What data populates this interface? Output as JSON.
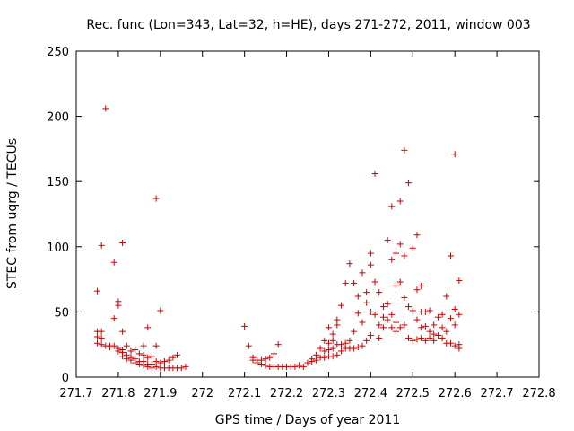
{
  "chart_data": {
    "type": "scatter",
    "title": "Rec. func (Lon=343, Lat=32, h=HE), days 271-272, 2011, window 003",
    "xlabel": "GPS time / Days of year 2011",
    "ylabel": "STEC from uqrg / TECUs",
    "xlim": [
      271.7,
      272.8
    ],
    "ylim": [
      0,
      250
    ],
    "xticks": [
      "271.7",
      "271.8",
      "271.9",
      "272",
      "272.1",
      "272.2",
      "272.3",
      "272.4",
      "272.5",
      "272.6",
      "272.7",
      "272.8"
    ],
    "yticks": [
      "0",
      "50",
      "100",
      "150",
      "200",
      "250"
    ],
    "grid": false,
    "marker_color": "#cc0000",
    "points": [
      [
        271.75,
        66
      ],
      [
        271.75,
        35
      ],
      [
        271.75,
        31
      ],
      [
        271.75,
        26
      ],
      [
        271.76,
        101
      ],
      [
        271.76,
        35
      ],
      [
        271.76,
        30
      ],
      [
        271.76,
        25
      ],
      [
        271.77,
        206
      ],
      [
        271.77,
        24
      ],
      [
        271.78,
        24
      ],
      [
        271.78,
        23
      ],
      [
        271.79,
        88
      ],
      [
        271.79,
        45
      ],
      [
        271.79,
        24
      ],
      [
        271.8,
        58
      ],
      [
        271.8,
        55
      ],
      [
        271.8,
        22
      ],
      [
        271.8,
        20
      ],
      [
        271.81,
        103
      ],
      [
        271.81,
        35
      ],
      [
        271.81,
        21
      ],
      [
        271.81,
        19
      ],
      [
        271.81,
        16
      ],
      [
        271.82,
        24
      ],
      [
        271.82,
        17
      ],
      [
        271.82,
        14
      ],
      [
        271.83,
        20
      ],
      [
        271.83,
        15
      ],
      [
        271.83,
        13
      ],
      [
        271.84,
        21
      ],
      [
        271.84,
        14
      ],
      [
        271.84,
        11
      ],
      [
        271.85,
        18
      ],
      [
        271.85,
        12
      ],
      [
        271.85,
        10
      ],
      [
        271.86,
        24
      ],
      [
        271.86,
        17
      ],
      [
        271.86,
        12
      ],
      [
        271.86,
        9
      ],
      [
        271.87,
        38
      ],
      [
        271.87,
        15
      ],
      [
        271.87,
        10
      ],
      [
        271.87,
        8
      ],
      [
        271.88,
        16
      ],
      [
        271.88,
        10
      ],
      [
        271.88,
        7
      ],
      [
        271.89,
        137
      ],
      [
        271.89,
        24
      ],
      [
        271.89,
        12
      ],
      [
        271.89,
        8
      ],
      [
        271.9,
        51
      ],
      [
        271.9,
        11
      ],
      [
        271.9,
        7
      ],
      [
        271.91,
        12
      ],
      [
        271.91,
        7
      ],
      [
        271.92,
        13
      ],
      [
        271.92,
        7
      ],
      [
        271.93,
        15
      ],
      [
        271.93,
        7
      ],
      [
        271.94,
        17
      ],
      [
        271.94,
        7
      ],
      [
        271.95,
        7
      ],
      [
        271.96,
        8
      ],
      [
        272.1,
        39
      ],
      [
        272.11,
        24
      ],
      [
        272.12,
        15
      ],
      [
        272.12,
        13
      ],
      [
        272.13,
        13
      ],
      [
        272.13,
        11
      ],
      [
        272.14,
        13
      ],
      [
        272.14,
        10
      ],
      [
        272.15,
        14
      ],
      [
        272.15,
        9
      ],
      [
        272.16,
        15
      ],
      [
        272.16,
        8
      ],
      [
        272.17,
        18
      ],
      [
        272.17,
        8
      ],
      [
        272.18,
        25
      ],
      [
        272.18,
        8
      ],
      [
        272.19,
        8
      ],
      [
        272.2,
        8
      ],
      [
        272.21,
        8
      ],
      [
        272.22,
        8
      ],
      [
        272.23,
        9
      ],
      [
        272.24,
        8
      ],
      [
        272.25,
        11
      ],
      [
        272.26,
        14
      ],
      [
        272.26,
        12
      ],
      [
        272.27,
        17
      ],
      [
        272.27,
        13
      ],
      [
        272.28,
        22
      ],
      [
        272.28,
        15
      ],
      [
        272.29,
        28
      ],
      [
        272.29,
        20
      ],
      [
        272.29,
        15
      ],
      [
        272.3,
        38
      ],
      [
        272.3,
        26
      ],
      [
        272.3,
        21
      ],
      [
        272.3,
        16
      ],
      [
        272.31,
        33
      ],
      [
        272.31,
        28
      ],
      [
        272.31,
        22
      ],
      [
        272.31,
        16
      ],
      [
        272.32,
        44
      ],
      [
        272.32,
        40
      ],
      [
        272.32,
        25
      ],
      [
        272.32,
        17
      ],
      [
        272.33,
        55
      ],
      [
        272.33,
        25
      ],
      [
        272.33,
        20
      ],
      [
        272.34,
        72
      ],
      [
        272.34,
        26
      ],
      [
        272.34,
        22
      ],
      [
        272.35,
        87
      ],
      [
        272.35,
        28
      ],
      [
        272.35,
        22
      ],
      [
        272.36,
        72
      ],
      [
        272.36,
        35
      ],
      [
        272.36,
        22
      ],
      [
        272.37,
        62
      ],
      [
        272.37,
        49
      ],
      [
        272.37,
        23
      ],
      [
        272.38,
        80
      ],
      [
        272.38,
        42
      ],
      [
        272.38,
        24
      ],
      [
        272.39,
        65
      ],
      [
        272.39,
        57
      ],
      [
        272.39,
        28
      ],
      [
        272.4,
        95
      ],
      [
        272.4,
        86
      ],
      [
        272.4,
        50
      ],
      [
        272.4,
        32
      ],
      [
        272.41,
        156
      ],
      [
        272.41,
        73
      ],
      [
        272.41,
        48
      ],
      [
        272.42,
        65
      ],
      [
        272.42,
        40
      ],
      [
        272.42,
        30
      ],
      [
        272.43,
        54
      ],
      [
        272.43,
        46
      ],
      [
        272.43,
        38
      ],
      [
        272.44,
        105
      ],
      [
        272.44,
        56
      ],
      [
        272.44,
        44
      ],
      [
        272.45,
        131
      ],
      [
        272.45,
        90
      ],
      [
        272.45,
        48
      ],
      [
        272.45,
        38
      ],
      [
        272.46,
        95
      ],
      [
        272.46,
        70
      ],
      [
        272.46,
        42
      ],
      [
        272.46,
        35
      ],
      [
        272.47,
        135
      ],
      [
        272.47,
        102
      ],
      [
        272.47,
        73
      ],
      [
        272.47,
        38
      ],
      [
        272.48,
        174
      ],
      [
        272.48,
        93
      ],
      [
        272.48,
        61
      ],
      [
        272.48,
        40
      ],
      [
        272.49,
        149
      ],
      [
        272.49,
        54
      ],
      [
        272.49,
        30
      ],
      [
        272.5,
        99
      ],
      [
        272.5,
        51
      ],
      [
        272.5,
        28
      ],
      [
        272.51,
        109
      ],
      [
        272.51,
        67
      ],
      [
        272.51,
        44
      ],
      [
        272.51,
        29
      ],
      [
        272.52,
        70
      ],
      [
        272.52,
        50
      ],
      [
        272.52,
        38
      ],
      [
        272.52,
        30
      ],
      [
        272.53,
        50
      ],
      [
        272.53,
        39
      ],
      [
        272.53,
        28
      ],
      [
        272.54,
        51
      ],
      [
        272.54,
        35
      ],
      [
        272.54,
        30
      ],
      [
        272.55,
        40
      ],
      [
        272.55,
        33
      ],
      [
        272.55,
        28
      ],
      [
        272.56,
        46
      ],
      [
        272.56,
        32
      ],
      [
        272.57,
        48
      ],
      [
        272.57,
        38
      ],
      [
        272.57,
        30
      ],
      [
        272.58,
        62
      ],
      [
        272.58,
        35
      ],
      [
        272.58,
        26
      ],
      [
        272.59,
        93
      ],
      [
        272.59,
        45
      ],
      [
        272.59,
        26
      ],
      [
        272.6,
        171
      ],
      [
        272.6,
        52
      ],
      [
        272.6,
        40
      ],
      [
        272.6,
        24
      ],
      [
        272.61,
        74
      ],
      [
        272.61,
        48
      ],
      [
        272.61,
        25
      ],
      [
        272.61,
        22
      ]
    ]
  }
}
